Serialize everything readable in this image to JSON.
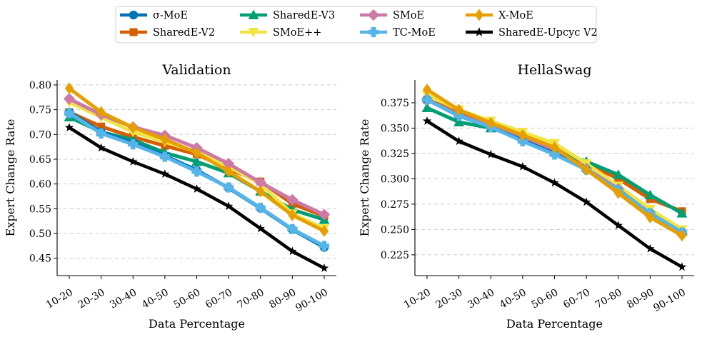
{
  "legend": [
    {
      "name": "σ-MoE",
      "color": "#0072b2",
      "marker": "circle"
    },
    {
      "name": "SharedE-V2",
      "color": "#d55e00",
      "marker": "square"
    },
    {
      "name": "SharedE-V3",
      "color": "#009e73",
      "marker": "triangle-up"
    },
    {
      "name": "SMoE++",
      "color": "#f0e442",
      "marker": "triangle-down"
    },
    {
      "name": "SMoE",
      "color": "#cc79a7",
      "marker": "diamond"
    },
    {
      "name": "TC-MoE",
      "color": "#56b4e9",
      "marker": "plus"
    },
    {
      "name": "X-MoE",
      "color": "#e69f00",
      "marker": "thin-diamond"
    },
    {
      "name": "SharedE-Upcyc V2",
      "color": "#000000",
      "marker": "star"
    }
  ],
  "chart_data": [
    {
      "type": "line",
      "title": "Validation",
      "xlabel": "Data Percentage",
      "ylabel": "Expert Change Rate",
      "categories": [
        "10-20",
        "20-30",
        "30-40",
        "40-50",
        "50-60",
        "60-70",
        "70-80",
        "80-90",
        "90-100"
      ],
      "ylim": [
        0.415,
        0.81
      ],
      "yticks": [
        0.45,
        0.5,
        0.55,
        0.6,
        0.65,
        0.7,
        0.75,
        0.8
      ],
      "tick_labels": [
        "0.45",
        "0.50",
        "0.55",
        "0.60",
        "0.65",
        "0.70",
        "0.75",
        "0.80"
      ],
      "grid": "y-dashed",
      "series": [
        {
          "name": "SharedE-V2",
          "values": [
            0.745,
            0.716,
            0.695,
            0.677,
            0.66,
            0.63,
            0.605,
            0.56,
            0.535
          ]
        },
        {
          "name": "SharedE-V3",
          "values": [
            0.735,
            0.705,
            0.689,
            0.663,
            0.645,
            0.622,
            0.585,
            0.548,
            0.528
          ]
        },
        {
          "name": "SMoE++",
          "values": [
            0.765,
            0.735,
            0.705,
            0.685,
            0.665,
            0.635,
            0.6,
            0.54,
            0.51
          ]
        },
        {
          "name": "SMoE",
          "values": [
            0.772,
            0.74,
            0.715,
            0.698,
            0.673,
            0.641,
            0.603,
            0.568,
            0.538
          ]
        },
        {
          "name": "σ-MoE",
          "values": [
            0.745,
            0.705,
            0.683,
            0.657,
            0.628,
            0.592,
            0.551,
            0.508,
            0.472
          ]
        },
        {
          "name": "TC-MoE",
          "values": [
            0.743,
            0.702,
            0.68,
            0.655,
            0.625,
            0.593,
            0.552,
            0.509,
            0.475
          ]
        },
        {
          "name": "X-MoE",
          "values": [
            0.793,
            0.745,
            0.714,
            0.69,
            0.663,
            0.625,
            0.585,
            0.537,
            0.505
          ]
        },
        {
          "name": "SharedE-Upcyc V2",
          "values": [
            0.714,
            0.673,
            0.645,
            0.62,
            0.59,
            0.555,
            0.51,
            0.464,
            0.43
          ]
        }
      ]
    },
    {
      "type": "line",
      "title": "HellaSwag",
      "xlabel": "Data Percentage",
      "ylabel": "Expert Change Rate",
      "categories": [
        "10-20",
        "20-30",
        "30-40",
        "40-50",
        "50-60",
        "60-70",
        "70-80",
        "80-90",
        "90-100"
      ],
      "ylim": [
        0.2045,
        0.3975
      ],
      "yticks": [
        0.225,
        0.25,
        0.275,
        0.3,
        0.325,
        0.35,
        0.375
      ],
      "tick_labels": [
        "0.225",
        "0.250",
        "0.275",
        "0.300",
        "0.325",
        "0.350",
        "0.375"
      ],
      "grid": "y-dashed",
      "series": [
        {
          "name": "SharedE-V2",
          "values": [
            0.378,
            0.366,
            0.352,
            0.34,
            0.33,
            0.315,
            0.3,
            0.28,
            0.268
          ]
        },
        {
          "name": "SharedE-V3",
          "values": [
            0.37,
            0.356,
            0.35,
            0.34,
            0.327,
            0.317,
            0.304,
            0.284,
            0.266
          ]
        },
        {
          "name": "SMoE++",
          "values": [
            0.383,
            0.368,
            0.357,
            0.346,
            0.335,
            0.315,
            0.293,
            0.27,
            0.25
          ]
        },
        {
          "name": "SMoE",
          "values": [
            0.378,
            0.363,
            0.352,
            0.34,
            0.329,
            0.31,
            0.29,
            0.264,
            0.245
          ]
        },
        {
          "name": "σ-MoE",
          "values": [
            0.378,
            0.362,
            0.351,
            0.338,
            0.325,
            0.309,
            0.289,
            0.266,
            0.247
          ]
        },
        {
          "name": "TC-MoE",
          "values": [
            0.378,
            0.362,
            0.351,
            0.337,
            0.324,
            0.309,
            0.289,
            0.266,
            0.247
          ]
        },
        {
          "name": "X-MoE",
          "values": [
            0.388,
            0.368,
            0.355,
            0.343,
            0.331,
            0.309,
            0.286,
            0.262,
            0.244
          ]
        },
        {
          "name": "SharedE-Upcyc V2",
          "values": [
            0.357,
            0.337,
            0.324,
            0.312,
            0.296,
            0.277,
            0.254,
            0.231,
            0.213
          ]
        }
      ]
    }
  ]
}
